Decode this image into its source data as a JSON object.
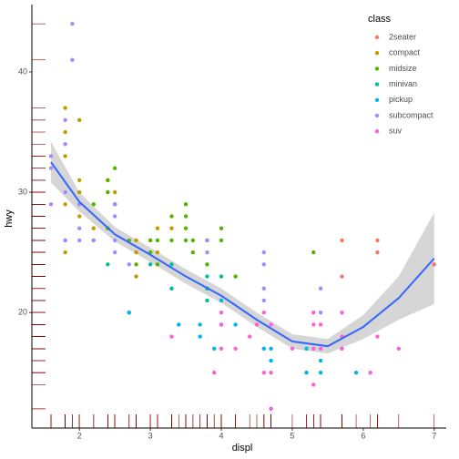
{
  "chart_data": {
    "type": "scatter",
    "x_label": "displ",
    "y_label": "hwy",
    "legend_title": "class",
    "xlim": [
      1.33,
      7.17
    ],
    "ylim": [
      10.4,
      45.6
    ],
    "xticks": [
      2,
      3,
      4,
      5,
      6,
      7
    ],
    "yticks": [
      20,
      30,
      40
    ],
    "legend_position": "top-right",
    "grid": false,
    "rug_color": "#8b0000",
    "series": [
      {
        "name": "2seater",
        "color": "#F8766D",
        "x": [
          5.7,
          5.7,
          6.2,
          6.2,
          7.0
        ],
        "y": [
          26,
          23,
          26,
          25,
          24
        ]
      },
      {
        "name": "compact",
        "color": "#C49A00",
        "x": [
          1.8,
          1.8,
          2.0,
          2.0,
          2.8,
          3.1,
          1.8,
          2.0,
          2.8,
          3.1,
          2.2,
          2.4,
          3.0,
          2.0,
          2.5,
          2.5,
          1.8,
          1.8,
          2.8,
          2.4,
          3.3,
          1.8,
          2.0,
          2.2
        ],
        "y": [
          29,
          26,
          31,
          28,
          26,
          27,
          25,
          30,
          25,
          25,
          27,
          31,
          26,
          36,
          29,
          30,
          37,
          35,
          23,
          27,
          27,
          33,
          29,
          26
        ]
      },
      {
        "name": "midsize",
        "color": "#53B400",
        "x": [
          2.4,
          2.4,
          3.1,
          3.5,
          3.6,
          2.5,
          2.5,
          3.3,
          3.0,
          3.5,
          4.0,
          3.8,
          5.3,
          3.1,
          2.7,
          3.0,
          3.3,
          3.8,
          4.2,
          3.5,
          2.8,
          3.6,
          4.0,
          2.2,
          2.4,
          3.5
        ],
        "y": [
          27,
          30,
          26,
          29,
          26,
          29,
          32,
          26,
          26,
          26,
          26,
          26,
          25,
          24,
          26,
          25,
          28,
          24,
          23,
          28,
          24,
          25,
          27,
          29,
          31,
          27
        ]
      },
      {
        "name": "minivan",
        "color": "#00C094",
        "x": [
          2.4,
          3.0,
          3.3,
          3.3,
          3.8,
          3.8,
          4.0,
          2.7,
          3.8
        ],
        "y": [
          24,
          24,
          22,
          24,
          22,
          21,
          23,
          20,
          23
        ]
      },
      {
        "name": "pickup",
        "color": "#00B6EB",
        "x": [
          2.7,
          3.7,
          3.7,
          3.9,
          4.7,
          4.7,
          4.7,
          5.2,
          5.2,
          5.7,
          5.9,
          4.2,
          4.6,
          5.4,
          4.0,
          5.4,
          4.0,
          3.4
        ],
        "y": [
          20,
          19,
          18,
          17,
          17,
          16,
          12,
          17,
          15,
          17,
          15,
          19,
          17,
          16,
          21,
          15,
          19,
          19
        ]
      },
      {
        "name": "subcompact",
        "color": "#A58AFF",
        "x": [
          1.9,
          1.9,
          1.6,
          1.6,
          1.8,
          1.8,
          1.8,
          2.0,
          2.0,
          2.5,
          2.5,
          3.8,
          4.6,
          5.4,
          2.2,
          1.6,
          2.0,
          2.5,
          3.8,
          4.6,
          5.4,
          2.5,
          2.7,
          1.8,
          4.6,
          4.6
        ],
        "y": [
          44,
          41,
          33,
          32,
          34,
          36,
          26,
          26,
          29,
          29,
          26,
          26,
          25,
          22,
          26,
          29,
          27,
          28,
          25,
          21,
          20,
          25,
          24,
          30,
          24,
          22
        ]
      },
      {
        "name": "suv",
        "color": "#FB61D7",
        "x": [
          5.3,
          5.3,
          5.7,
          6.5,
          6.1,
          4.0,
          4.0,
          4.6,
          5.4,
          4.7,
          4.4,
          5.0,
          5.7,
          6.2,
          3.3,
          4.7,
          5.3,
          4.2,
          3.9,
          4.7,
          4.6,
          5.3,
          4.0,
          5.4,
          5.7,
          4.5
        ],
        "y": [
          20,
          19,
          20,
          17,
          15,
          20,
          19,
          20,
          17,
          12,
          18,
          17,
          18,
          18,
          18,
          19,
          17,
          17,
          15,
          15,
          15,
          14,
          17,
          19,
          17,
          19
        ]
      }
    ],
    "smooth": {
      "color": "#3366ff",
      "band_color": "#cccccc",
      "x": [
        1.6,
        2.0,
        2.5,
        3.0,
        3.5,
        4.0,
        4.5,
        5.0,
        5.5,
        6.0,
        6.5,
        7.0
      ],
      "y": [
        32.5,
        29.2,
        26.5,
        24.8,
        23.0,
        21.4,
        19.4,
        17.6,
        17.2,
        18.8,
        21.2,
        24.5
      ],
      "ymin": [
        30.8,
        28.4,
        25.9,
        24.2,
        22.4,
        20.8,
        18.8,
        17.0,
        16.6,
        17.8,
        19.4,
        20.7
      ],
      "ymax": [
        34.2,
        30.0,
        27.1,
        25.4,
        23.6,
        22.0,
        20.0,
        18.2,
        17.8,
        19.8,
        23.0,
        28.3
      ]
    }
  }
}
